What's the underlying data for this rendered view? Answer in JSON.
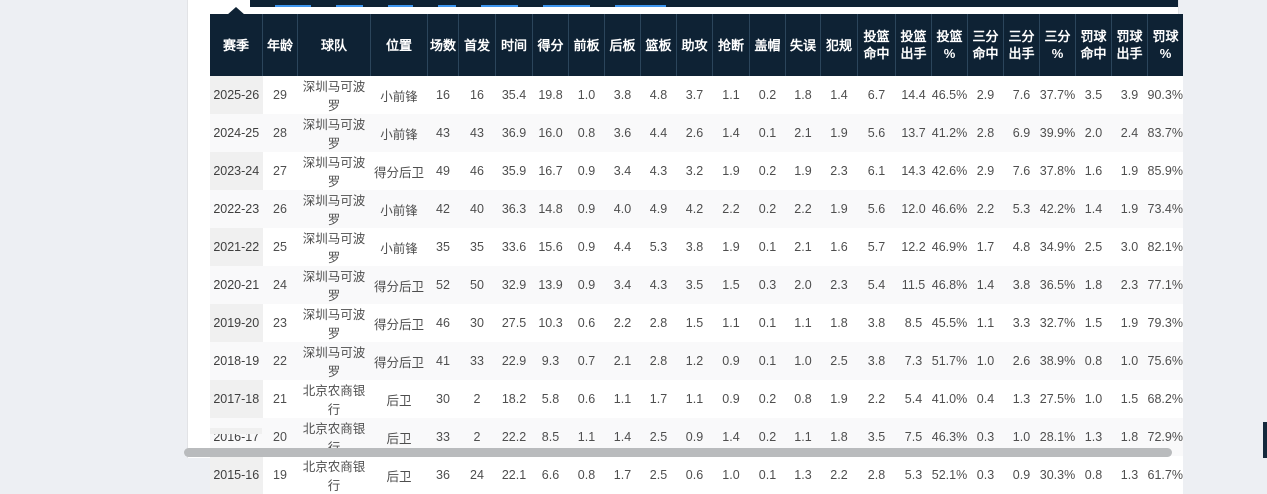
{
  "colors": {
    "page_background": "#edeff3",
    "panel_background": "#ffffff",
    "header_background": "#0e2234",
    "tab_accent": "#3d95ee",
    "season_column_background": "#f0f0f0",
    "alt_row_background": "#f9f9fa"
  },
  "table": {
    "columns": [
      [
        "赛季"
      ],
      [
        "年龄"
      ],
      [
        "球队"
      ],
      [
        "位置"
      ],
      [
        "场数"
      ],
      [
        "首发"
      ],
      [
        "时间"
      ],
      [
        "得分"
      ],
      [
        "前板"
      ],
      [
        "后板"
      ],
      [
        "篮板"
      ],
      [
        "助攻"
      ],
      [
        "抢断"
      ],
      [
        "盖帽"
      ],
      [
        "失误"
      ],
      [
        "犯规"
      ],
      [
        "投篮",
        "命中"
      ],
      [
        "投篮",
        "出手"
      ],
      [
        "投篮",
        "%"
      ],
      [
        "三分",
        "命中"
      ],
      [
        "三分",
        "出手"
      ],
      [
        "三分",
        "%"
      ],
      [
        "罚球",
        "命中"
      ],
      [
        "罚球",
        "出手"
      ],
      [
        "罚球",
        "%"
      ]
    ],
    "rows": [
      [
        "2025-26",
        "29",
        "深圳马可波罗",
        "小前锋",
        "16",
        "16",
        "35.4",
        "19.8",
        "1.0",
        "3.8",
        "4.8",
        "3.7",
        "1.1",
        "0.2",
        "1.8",
        "1.4",
        "6.7",
        "14.4",
        "46.5%",
        "2.9",
        "7.6",
        "37.7%",
        "3.5",
        "3.9",
        "90.3%"
      ],
      [
        "2024-25",
        "28",
        "深圳马可波罗",
        "小前锋",
        "43",
        "43",
        "36.9",
        "16.0",
        "0.8",
        "3.6",
        "4.4",
        "2.6",
        "1.4",
        "0.1",
        "2.1",
        "1.9",
        "5.6",
        "13.7",
        "41.2%",
        "2.8",
        "6.9",
        "39.9%",
        "2.0",
        "2.4",
        "83.7%"
      ],
      [
        "2023-24",
        "27",
        "深圳马可波罗",
        "得分后卫",
        "49",
        "46",
        "35.9",
        "16.7",
        "0.9",
        "3.4",
        "4.3",
        "3.2",
        "1.9",
        "0.2",
        "1.9",
        "2.3",
        "6.1",
        "14.3",
        "42.6%",
        "2.9",
        "7.6",
        "37.8%",
        "1.6",
        "1.9",
        "85.9%"
      ],
      [
        "2022-23",
        "26",
        "深圳马可波罗",
        "小前锋",
        "42",
        "40",
        "36.3",
        "14.8",
        "0.9",
        "4.0",
        "4.9",
        "4.2",
        "2.2",
        "0.2",
        "2.2",
        "1.9",
        "5.6",
        "12.0",
        "46.6%",
        "2.2",
        "5.3",
        "42.2%",
        "1.4",
        "1.9",
        "73.4%"
      ],
      [
        "2021-22",
        "25",
        "深圳马可波罗",
        "小前锋",
        "35",
        "35",
        "33.6",
        "15.6",
        "0.9",
        "4.4",
        "5.3",
        "3.8",
        "1.9",
        "0.1",
        "2.1",
        "1.6",
        "5.7",
        "12.2",
        "46.9%",
        "1.7",
        "4.8",
        "34.9%",
        "2.5",
        "3.0",
        "82.1%"
      ],
      [
        "2020-21",
        "24",
        "深圳马可波罗",
        "得分后卫",
        "52",
        "50",
        "32.9",
        "13.9",
        "0.9",
        "3.4",
        "4.3",
        "3.5",
        "1.5",
        "0.3",
        "2.0",
        "2.3",
        "5.4",
        "11.5",
        "46.8%",
        "1.4",
        "3.8",
        "36.5%",
        "1.8",
        "2.3",
        "77.1%"
      ],
      [
        "2019-20",
        "23",
        "深圳马可波罗",
        "得分后卫",
        "46",
        "30",
        "27.5",
        "10.3",
        "0.6",
        "2.2",
        "2.8",
        "1.5",
        "1.1",
        "0.1",
        "1.1",
        "1.8",
        "3.8",
        "8.5",
        "45.5%",
        "1.1",
        "3.3",
        "32.7%",
        "1.5",
        "1.9",
        "79.3%"
      ],
      [
        "2018-19",
        "22",
        "深圳马可波罗",
        "得分后卫",
        "41",
        "33",
        "22.9",
        "9.3",
        "0.7",
        "2.1",
        "2.8",
        "1.2",
        "0.9",
        "0.1",
        "1.0",
        "2.5",
        "3.8",
        "7.3",
        "51.7%",
        "1.0",
        "2.6",
        "38.9%",
        "0.8",
        "1.0",
        "75.6%"
      ],
      [
        "2017-18",
        "21",
        "北京农商银行",
        "后卫",
        "30",
        "2",
        "18.2",
        "5.8",
        "0.6",
        "1.1",
        "1.7",
        "1.1",
        "0.9",
        "0.2",
        "0.8",
        "1.9",
        "2.2",
        "5.4",
        "41.0%",
        "0.4",
        "1.3",
        "27.5%",
        "1.0",
        "1.5",
        "68.2%"
      ],
      [
        "2016-17",
        "20",
        "北京农商银行",
        "后卫",
        "33",
        "2",
        "22.2",
        "8.5",
        "1.1",
        "1.4",
        "2.5",
        "0.9",
        "1.4",
        "0.2",
        "1.1",
        "1.8",
        "3.5",
        "7.5",
        "46.3%",
        "0.3",
        "1.0",
        "28.1%",
        "1.3",
        "1.8",
        "72.9%"
      ],
      [
        "2015-16",
        "19",
        "北京农商银行",
        "后卫",
        "36",
        "24",
        "22.1",
        "6.6",
        "0.8",
        "1.7",
        "2.5",
        "0.6",
        "1.0",
        "0.1",
        "1.3",
        "2.2",
        "2.8",
        "5.3",
        "52.1%",
        "0.3",
        "0.9",
        "30.3%",
        "0.8",
        "1.3",
        "61.7%"
      ]
    ]
  }
}
